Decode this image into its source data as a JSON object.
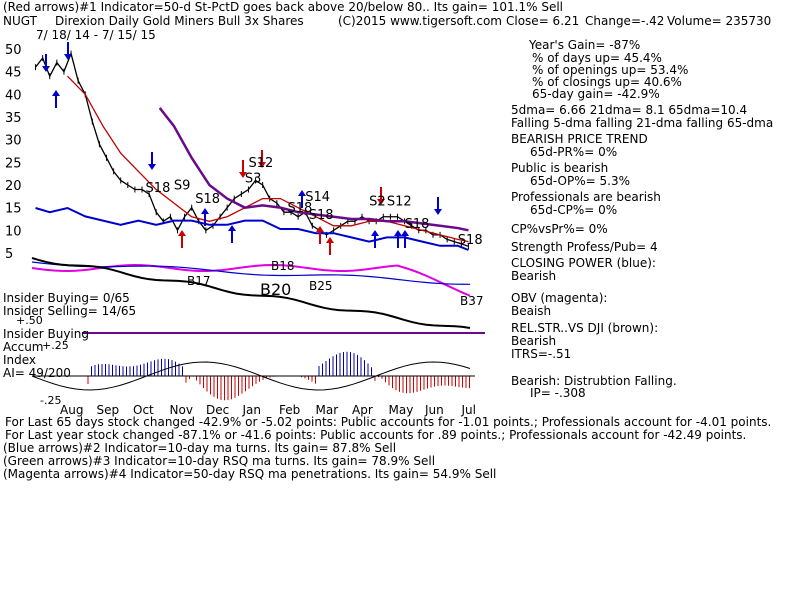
{
  "header": {
    "line1": "(Red arrows)#1 Indicator=50-d St-PctD goes back above 20/below 80.. Its gain= 101.1% Sell",
    "symbol": "NUGT",
    "title": "Direxion Daily Gold Miners Bull 3x Shares",
    "copyright": "(C)2015 www.tigersoft.com",
    "close": "Close=   6.21",
    "change": "Change=-.42",
    "volume": "Volume= 235730",
    "date_range": "7/ 18/ 14 - 7/ 15/ 15"
  },
  "stats": {
    "years_gain": "Year's Gain= -87%",
    "days_up": "% of days up= 45.4%",
    "openings_up": "% of openings up= 53.4%",
    "closings_up": "% of closings up= 40.6%",
    "gain65": "65-day gain= -42.9%",
    "dma": "5dma= 6.66 21dma= 8.1 65dma=10.4",
    "falling": "Falling 5-dma falling 21-dma falling 65-dma",
    "trend_title": "BEARISH PRICE TREND",
    "pr": "65d-PR%= 0%",
    "public": "Public is bearish",
    "op": "65d-OP%= 5.3%",
    "professionals": "Professionals are bearish",
    "cp": "65d-CP%= 0%",
    "cpvspr": "CP%vsPr%=  0%",
    "strength": "Strength Profess/Pub= 4",
    "closing_power": "CLOSING POWER (blue):",
    "cp_val": "Bearish",
    "obv": "OBV (magenta):",
    "obv_val": "Beaish",
    "relstr": "REL.STR..VS DJI (brown):",
    "relstr_val": "Bearish",
    "itrs": "ITRS=-.51",
    "bearish_dist": "Bearish: Distrubtion Falling.",
    "ip": "IP= -.308"
  },
  "left_labels": {
    "insider_buying": "Insider Buying= 0/65",
    "insider_selling": "Insider Selling= 14/65",
    "insider_buying2": "Insider Buying",
    "accum": "Accum",
    "index": "Index",
    "ai": "AI= 49/200",
    "p50": "+.50",
    "p25": "+.25",
    "m25": "-.25"
  },
  "footer": {
    "line1": "For Last 65 days stock changed -42.9% or -5.02 points:  Public accounts for -1.01 points.;  Professionals account for -4.01 points.",
    "line2": "For Last year stock changed -87.1% or -41.6 points:  Public accounts for  .89 points.;  Professionals account for -42.49 points.",
    "line3": "(Blue arrows)#2 Indicator=10-day ma turns. Its gain= 87.8% Sell",
    "line4": "(Green arrows)#3 Indicator=10-day RSQ ma turns. Its gain= 78.9% Sell",
    "line5": "(Magenta arrows)#4 Indicator=50-day RSQ ma penetrations. Its gain= 54.9% Sell"
  },
  "chart_data": {
    "type": "line",
    "yticks": [
      50,
      45,
      40,
      35,
      30,
      25,
      20,
      15,
      10,
      5
    ],
    "ylim": [
      5,
      50
    ],
    "months": [
      "Aug",
      "Sep",
      "Oct",
      "Nov",
      "Dec",
      "Jan",
      "Feb",
      "Mar",
      "Apr",
      "May",
      "Jun",
      "Jul"
    ],
    "price_labels": [
      {
        "text": "S18",
        "x": 32,
        "y": 18.5
      },
      {
        "text": "S9",
        "x": 40,
        "y": 19
      },
      {
        "text": "S18",
        "x": 46,
        "y": 16
      },
      {
        "text": "S12",
        "x": 61,
        "y": 24
      },
      {
        "text": "S3",
        "x": 60,
        "y": 20.5
      },
      {
        "text": "S18",
        "x": 72,
        "y": 14
      },
      {
        "text": "S14",
        "x": 77,
        "y": 16.5
      },
      {
        "text": "S18",
        "x": 78,
        "y": 12.5
      },
      {
        "text": "S2",
        "x": 95,
        "y": 15.5
      },
      {
        "text": "S12",
        "x": 100,
        "y": 15.5
      },
      {
        "text": "S18",
        "x": 105,
        "y": 10.5
      },
      {
        "text": "S18",
        "x": 120,
        "y": 7
      }
    ],
    "indicator_labels": [
      "B17",
      "B18",
      "B20",
      "B25",
      "B37"
    ],
    "series": [
      {
        "name": "NUGT",
        "x": [
          1,
          3,
          5,
          7,
          9,
          11,
          13,
          15,
          17,
          19,
          21,
          23,
          25,
          27,
          29,
          31,
          33,
          35,
          37,
          39,
          41,
          43,
          45,
          47,
          49,
          51,
          53,
          55,
          57,
          59,
          61,
          63,
          65,
          67,
          69,
          71,
          73,
          75,
          77,
          79,
          81,
          83,
          85,
          87,
          89,
          91,
          93,
          95,
          97,
          99,
          101,
          103,
          105,
          107,
          109,
          111,
          113,
          115,
          117,
          119,
          121,
          123
        ],
        "y": [
          46,
          48,
          44,
          47,
          45,
          49,
          43,
          40,
          34,
          29,
          26,
          23,
          21,
          20,
          19,
          19,
          18,
          14,
          12,
          13,
          10,
          13,
          15,
          12,
          10,
          11,
          13,
          15,
          17,
          18,
          19,
          21,
          20,
          17,
          16,
          14,
          14,
          13,
          14,
          11,
          10,
          9,
          10,
          11,
          12,
          12,
          13,
          12,
          12,
          13,
          13,
          13,
          12,
          11,
          10,
          10,
          9,
          9,
          8,
          7.5,
          7,
          6.5
        ]
      },
      {
        "name": "21-dma",
        "x": [
          10,
          15,
          20,
          25,
          30,
          35,
          40,
          45,
          50,
          55,
          60,
          65,
          70,
          75,
          80,
          85,
          90,
          95,
          100,
          105,
          110,
          115,
          120,
          123
        ],
        "y": [
          44,
          40,
          33,
          27,
          23,
          19,
          16,
          13,
          12,
          13,
          15,
          17,
          17,
          15,
          13,
          11,
          11,
          12,
          12,
          11,
          10,
          9,
          8,
          7.5
        ]
      },
      {
        "name": "65-dma",
        "x": [
          36,
          40,
          45,
          50,
          55,
          60,
          65,
          70,
          75,
          80,
          85,
          90,
          95,
          100,
          105,
          110,
          115,
          120,
          123
        ],
        "y": [
          37,
          33,
          26,
          20,
          17,
          15,
          15.5,
          15,
          14,
          13.5,
          13,
          12.5,
          12.5,
          12,
          12,
          11.5,
          11,
          10.5,
          10
        ]
      },
      {
        "name": "Closing Power",
        "x": [
          1,
          5,
          10,
          15,
          20,
          25,
          30,
          35,
          40,
          45,
          50,
          55,
          60,
          65,
          70,
          75,
          80,
          85,
          90,
          95,
          100,
          105,
          110,
          115,
          120,
          123
        ],
        "y": [
          15,
          14,
          15,
          13,
          12,
          11,
          12,
          11,
          12,
          12,
          11,
          11,
          12,
          12,
          10,
          10,
          9,
          9,
          8,
          7,
          8,
          8,
          7,
          6,
          6,
          5
        ],
        "scale": "relative"
      }
    ]
  },
  "colors": {
    "price": "#000000",
    "ma_red": "#c00000",
    "ma_purple": "#6a0a8a",
    "closing_power": "#0000cc",
    "obv": "#e000e0",
    "relstr": "#000000",
    "accum": "#0000aa",
    "distribution": "#cc0000"
  }
}
